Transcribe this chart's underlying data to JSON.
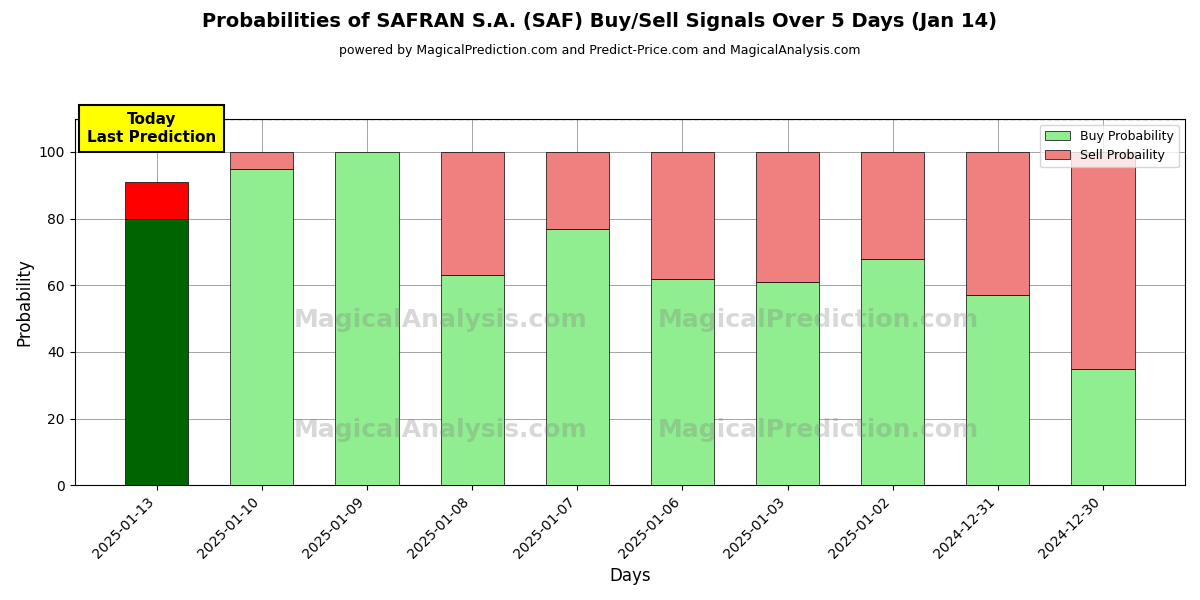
{
  "title": "Probabilities of SAFRAN S.A. (SAF) Buy/Sell Signals Over 5 Days (Jan 14)",
  "subtitle": "powered by MagicalPrediction.com and Predict-Price.com and MagicalAnalysis.com",
  "xlabel": "Days",
  "ylabel": "Probability",
  "dates": [
    "2025-01-13",
    "2025-01-10",
    "2025-01-09",
    "2025-01-08",
    "2025-01-07",
    "2025-01-06",
    "2025-01-03",
    "2025-01-02",
    "2024-12-31",
    "2024-12-30"
  ],
  "buy_probs": [
    80,
    95,
    100,
    63,
    77,
    62,
    61,
    68,
    57,
    35
  ],
  "sell_probs": [
    11,
    5,
    0,
    37,
    23,
    38,
    39,
    32,
    43,
    65
  ],
  "bar_colors_buy_today": "#006400",
  "bar_colors_sell_today": "#ff0000",
  "bar_colors_buy_other": "#90ee90",
  "bar_colors_sell_other": "#f08080",
  "today_annotation_text": "Today\nLast Prediction",
  "today_annotation_bg": "#ffff00",
  "legend_buy_label": "Buy Probability",
  "legend_sell_label": "Sell Probaility",
  "ylim": [
    0,
    110
  ],
  "yticks": [
    0,
    20,
    40,
    60,
    80,
    100
  ],
  "dashed_line_y": 110,
  "watermark1": "MagicalAnalysis.com",
  "watermark2": "MagicalPrediction.com",
  "figsize": [
    12,
    6
  ],
  "dpi": 100
}
